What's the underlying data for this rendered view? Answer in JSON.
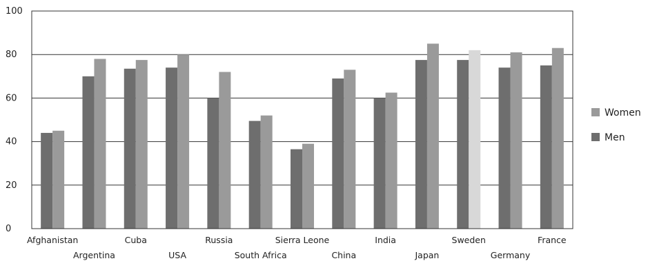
{
  "chart_data": {
    "type": "bar",
    "title": "",
    "xlabel": "",
    "ylabel": "",
    "ylim": [
      0,
      100
    ],
    "yticks": [
      0,
      20,
      40,
      60,
      80,
      100
    ],
    "grid": "horizontal",
    "legend_position": "right",
    "categories": [
      "Afghanistan",
      "Argentina",
      "Cuba",
      "USA",
      "Russia",
      "South Africa",
      "Sierra Leone",
      "China",
      "India",
      "Japan",
      "Sweden",
      "Germany",
      "France"
    ],
    "series": [
      {
        "name": "Men",
        "color": "#6e6e6e",
        "values": [
          44,
          70,
          73.5,
          74,
          60,
          49.5,
          36.5,
          69,
          60,
          77.5,
          77.5,
          74,
          75
        ]
      },
      {
        "name": "Women",
        "color": "#9a9a9a",
        "values": [
          45,
          78,
          77.5,
          80,
          72,
          52,
          39,
          73,
          62.5,
          85,
          82,
          81,
          83
        ]
      }
    ],
    "highlight": {
      "category": "Sweden",
      "series": "Women",
      "color": "#d8d8d8"
    },
    "legend_order": [
      "Women",
      "Men"
    ]
  }
}
